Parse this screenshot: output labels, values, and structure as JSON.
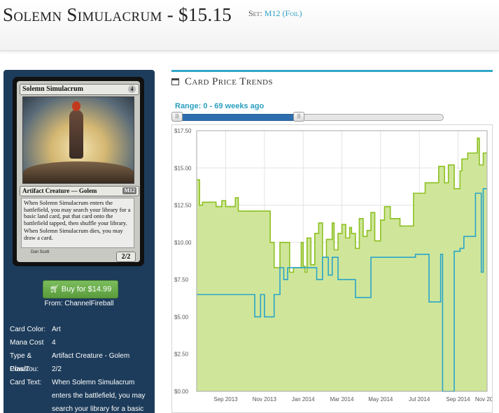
{
  "header": {
    "card_title": "Solemn Simulacrum - $15.15",
    "set_label": "Set:",
    "set_value": "M12 (Foil)"
  },
  "card_image": {
    "name": "Solemn Simulacrum",
    "cost": "4",
    "type_line": "Artifact Creature — Golem",
    "set_symbol": "M12",
    "rules_text_1": "When Solemn Simulacrum enters the battlefield, you may search your library for a basic land card, put that card onto the battlefield tapped, then shuffle your library.",
    "rules_text_2": "When Solemn Simulacrum dies, you may draw a card.",
    "power_toughness": "2/2",
    "artist": "Dan Scott"
  },
  "buy": {
    "label": "Buy for $14.99",
    "from": "From: ChannelFireball",
    "color": "#5a9c3c"
  },
  "details": {
    "color_label": "Card Color:",
    "color_value": "Art",
    "cost_label": "Mana Cost",
    "cost_value": "4",
    "type_label": "Type & Class:",
    "type_value": "Artifact Creature - Golem",
    "pt_label": "Pow/Tou:",
    "pt_value": "2/2",
    "text_label": "Card Text:",
    "text_value": "When Solemn Simulacrum enters the battlefield, you may search your library for a basic"
  },
  "trends": {
    "title": "Card Price Trends",
    "range_label": "Range: 0 - 69 weeks ago",
    "accent_color": "#32a7c7"
  },
  "chart_data": {
    "type": "line",
    "title": "",
    "xlabel": "",
    "ylabel": "",
    "xlim": [
      0,
      15
    ],
    "ylim": [
      0,
      17.5
    ],
    "yticks": [
      0,
      2.5,
      5,
      7.5,
      10,
      12.5,
      15,
      17.5
    ],
    "ytick_labels": [
      "$0.00",
      "$2.50",
      "$5.00",
      "$7.50",
      "$10.00",
      "$12.50",
      "$15.00",
      "$17.50"
    ],
    "xtick_positions": [
      1.5,
      3.5,
      5.5,
      7.5,
      9.5,
      11.5,
      13.5,
      15.0
    ],
    "xtick_labels": [
      "Sep 2013",
      "Nov 2013",
      "Jan 2014",
      "Mar 2014",
      "May 2014",
      "Jul 2014",
      "Sep 2014",
      "Nov 2014"
    ],
    "grid": true,
    "series": [
      {
        "fill": true,
        "color": "#8cc020",
        "fill_color": "#cfe69a",
        "x": [
          0,
          0.15,
          0.15,
          0.3,
          0.3,
          1.0,
          1.0,
          1.3,
          1.3,
          1.5,
          1.5,
          2.0,
          2.0,
          2.15,
          2.15,
          2.5,
          2.5,
          2.8,
          2.8,
          3.3,
          3.3,
          3.5,
          3.5,
          3.8,
          3.8,
          4.0,
          4.0,
          4.3,
          4.3,
          4.5,
          4.5,
          4.8,
          4.8,
          5.0,
          5.0,
          5.4,
          5.4,
          5.5,
          5.5,
          5.6,
          5.6,
          5.7,
          5.7,
          5.9,
          5.9,
          6.1,
          6.1,
          6.3,
          6.3,
          6.5,
          6.5,
          6.7,
          6.7,
          7.0,
          7.0,
          7.1,
          7.1,
          7.3,
          7.3,
          7.5,
          7.5,
          7.7,
          7.7,
          7.9,
          7.9,
          8.0,
          8.0,
          8.2,
          8.2,
          8.4,
          8.4,
          8.6,
          8.6,
          8.8,
          8.8,
          9.0,
          9.0,
          9.2,
          9.2,
          9.5,
          9.5,
          9.7,
          9.7,
          10.0,
          10.0,
          10.5,
          10.5,
          11.2,
          11.2,
          11.8,
          11.8,
          12.5,
          12.5,
          12.8,
          12.8,
          13.0,
          13.0,
          13.3,
          13.3,
          13.6,
          13.6,
          13.7,
          13.7,
          14.0,
          14.0,
          14.5,
          14.5,
          14.6,
          14.6,
          14.8,
          14.8,
          15.0
        ],
        "y": [
          14.2,
          14.2,
          12.5,
          12.5,
          12.7,
          12.7,
          12.4,
          12.4,
          12.8,
          12.8,
          12.4,
          12.4,
          13.0,
          13.0,
          12.1,
          12.1,
          12.1,
          12.1,
          12.1,
          12.1,
          12.1,
          12.1,
          12.1,
          12.1,
          10.0,
          10.0,
          8.3,
          8.3,
          10.0,
          10.0,
          10.0,
          10.0,
          8.0,
          8.0,
          8.3,
          8.3,
          10.0,
          10.0,
          8.4,
          8.4,
          8.0,
          8.0,
          10.3,
          10.3,
          8.5,
          8.5,
          10.6,
          10.6,
          11.3,
          11.3,
          9.0,
          9.0,
          10.2,
          10.2,
          11.3,
          11.3,
          9.5,
          9.5,
          10.6,
          10.6,
          11.2,
          11.2,
          10.3,
          10.3,
          11.0,
          11.0,
          10.6,
          10.6,
          9.6,
          9.6,
          11.6,
          11.6,
          10.4,
          10.4,
          10.8,
          10.8,
          12.0,
          12.0,
          10.1,
          10.1,
          11.5,
          11.5,
          12.4,
          12.4,
          11.6,
          11.6,
          11.1,
          11.1,
          13.3,
          13.3,
          14.0,
          14.0,
          15.1,
          15.1,
          14.0,
          14.0,
          15.2,
          15.2,
          13.6,
          13.6,
          14.8,
          14.8,
          15.6,
          15.6,
          16.0,
          16.0,
          17.0,
          17.0,
          15.2,
          15.2,
          16.0,
          16.0
        ]
      },
      {
        "fill": false,
        "color": "#2aa4c8",
        "x": [
          0,
          3.0,
          3.0,
          3.3,
          3.3,
          3.5,
          3.5,
          3.7,
          3.7,
          4.0,
          4.0,
          4.3,
          4.3,
          4.5,
          4.5,
          4.7,
          4.7,
          5.0,
          5.0,
          6.2,
          6.2,
          6.5,
          6.5,
          6.8,
          6.8,
          7.0,
          7.0,
          7.3,
          7.3,
          8.2,
          8.2,
          8.5,
          8.5,
          8.6,
          8.6,
          9.0,
          9.0,
          11.3,
          11.3,
          12.0,
          12.0,
          12.6,
          12.6,
          12.7,
          12.7,
          13.3,
          13.3,
          13.6,
          13.6,
          13.8,
          13.8,
          14.4,
          14.4,
          14.7,
          14.7,
          14.8,
          14.8,
          15.0
        ],
        "y": [
          6.5,
          6.5,
          5.0,
          5.0,
          6.5,
          6.5,
          5.0,
          5.0,
          5.0,
          5.0,
          6.5,
          6.5,
          8.3,
          8.3,
          7.5,
          7.5,
          8.3,
          8.3,
          8.3,
          8.3,
          7.5,
          7.5,
          9.0,
          9.0,
          7.8,
          7.8,
          9.0,
          9.0,
          7.5,
          7.5,
          6.3,
          6.3,
          6.3,
          6.3,
          6.3,
          6.3,
          9.0,
          9.0,
          9.2,
          9.2,
          6.0,
          6.0,
          9.2,
          9.2,
          0,
          0,
          9.4,
          9.4,
          9.6,
          9.6,
          10.4,
          10.4,
          13.3,
          13.3,
          8.0,
          8.0,
          13.6,
          13.6
        ]
      }
    ]
  }
}
